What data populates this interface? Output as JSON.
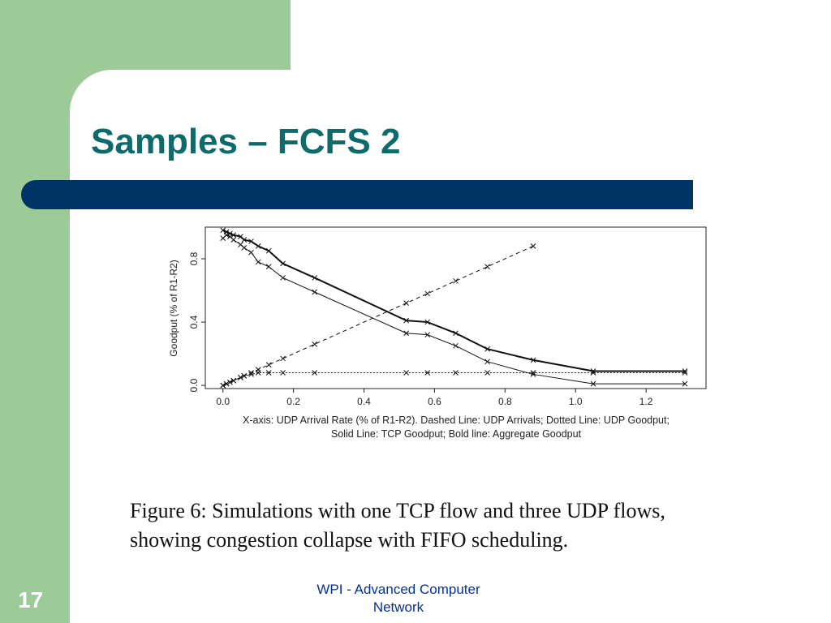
{
  "slide": {
    "title": "Samples – FCFS 2",
    "page_number": "17",
    "footer_line1": "WPI - Advanced Computer",
    "footer_line2": "Network",
    "caption_line1": "Figure 6:  Simulations with one TCP flow and three UDP flows,",
    "caption_line2": "showing congestion collapse with FIFO scheduling.",
    "colors": {
      "background": "#9ccb98",
      "title": "#0f6b6b",
      "bar": "#003366",
      "footer": "#003399"
    }
  },
  "chart_data": {
    "type": "line",
    "title": "",
    "xlabel": "",
    "ylabel": "Goodput (% of R1-R2)",
    "xlim": [
      -0.05,
      1.37
    ],
    "ylim": [
      -0.02,
      1.0
    ],
    "xticks": [
      "0.0",
      "0.2",
      "0.4",
      "0.6",
      "0.8",
      "1.0",
      "1.2"
    ],
    "yticks": [
      "0.0",
      "0.4",
      "0.8"
    ],
    "note_line1": "X-axis: UDP Arrival Rate (% of R1-R2).  Dashed Line: UDP Arrivals; Dotted Line: UDP Goodput;",
    "note_line2": "Solid Line: TCP Goodput; Bold line: Aggregate Goodput",
    "grid": false,
    "series": [
      {
        "style": "dashed",
        "x": [
          0.0,
          0.01,
          0.02,
          0.03,
          0.05,
          0.06,
          0.08,
          0.1,
          0.13,
          0.17,
          0.26,
          0.52,
          0.58,
          0.66,
          0.75,
          0.88
        ],
        "y": [
          0.0,
          0.01,
          0.02,
          0.03,
          0.05,
          0.06,
          0.08,
          0.1,
          0.13,
          0.17,
          0.26,
          0.52,
          0.58,
          0.66,
          0.75,
          0.88
        ]
      },
      {
        "style": "dotted",
        "x": [
          0.0,
          0.01,
          0.02,
          0.03,
          0.05,
          0.06,
          0.08,
          0.1,
          0.13,
          0.17,
          0.26,
          0.52,
          0.58,
          0.66,
          0.75,
          0.88,
          1.05,
          1.31
        ],
        "y": [
          0.0,
          0.01,
          0.02,
          0.03,
          0.05,
          0.06,
          0.07,
          0.08,
          0.08,
          0.08,
          0.08,
          0.08,
          0.08,
          0.08,
          0.08,
          0.08,
          0.08,
          0.08
        ]
      },
      {
        "style": "solid",
        "x": [
          0.0,
          0.01,
          0.02,
          0.03,
          0.05,
          0.06,
          0.08,
          0.1,
          0.13,
          0.17,
          0.26,
          0.52,
          0.58,
          0.66,
          0.75,
          0.88,
          1.05,
          1.31
        ],
        "y": [
          0.93,
          0.95,
          0.94,
          0.92,
          0.89,
          0.87,
          0.84,
          0.78,
          0.75,
          0.68,
          0.59,
          0.33,
          0.32,
          0.25,
          0.15,
          0.07,
          0.01,
          0.01
        ]
      },
      {
        "style": "bold",
        "x": [
          0.0,
          0.01,
          0.02,
          0.03,
          0.05,
          0.06,
          0.08,
          0.1,
          0.13,
          0.17,
          0.26,
          0.52,
          0.58,
          0.66,
          0.75,
          0.88,
          1.05,
          1.31
        ],
        "y": [
          0.98,
          0.97,
          0.96,
          0.95,
          0.94,
          0.92,
          0.91,
          0.88,
          0.85,
          0.77,
          0.68,
          0.41,
          0.4,
          0.33,
          0.23,
          0.16,
          0.09,
          0.09
        ]
      }
    ]
  }
}
